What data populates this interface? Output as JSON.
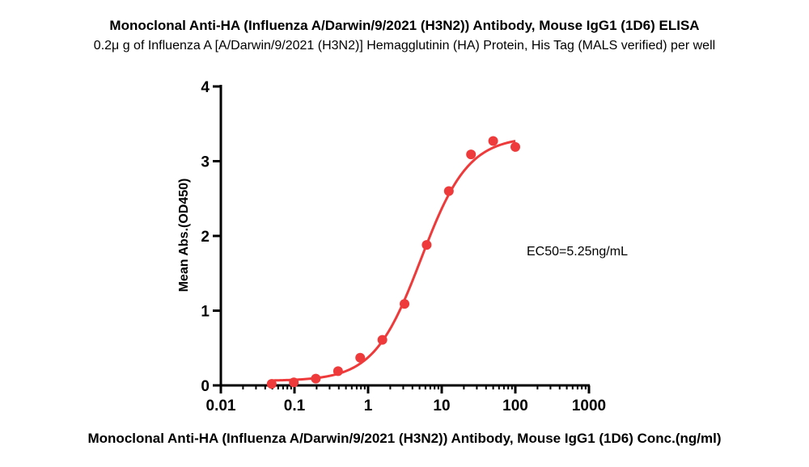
{
  "chart_data": {
    "type": "scatter",
    "title": "Monoclonal Anti-HA (Influenza A/Darwin/9/2021 (H3N2)) Antibody, Mouse IgG1 (1D6) ELISA",
    "subtitle": "0.2μ g of Influenza A [A/Darwin/9/2021 (H3N2)] Hemagglutinin (HA) Protein, His Tag (MALS verified) per well",
    "xlabel": "Monoclonal Anti-HA (Influenza A/Darwin/9/2021 (H3N2)) Antibody, Mouse IgG1 (1D6) Conc.(ng/ml)",
    "ylabel": "Mean Abs.(OD450)",
    "xscale": "log",
    "xlim": [
      0.01,
      1000
    ],
    "ylim": [
      0,
      4
    ],
    "xticks": [
      "0.01",
      "0.1",
      "1",
      "10",
      "100",
      "1000"
    ],
    "yticks": [
      "0",
      "1",
      "2",
      "3",
      "4"
    ],
    "series": [
      {
        "name": "Mean Abs.(OD450)",
        "color": "#ee3a3a",
        "x": [
          0.049,
          0.098,
          0.195,
          0.391,
          0.781,
          1.563,
          3.125,
          6.25,
          12.5,
          25,
          50,
          100
        ],
        "y": [
          0.02,
          0.04,
          0.09,
          0.19,
          0.37,
          0.61,
          1.09,
          1.88,
          2.6,
          3.09,
          3.27,
          3.19
        ]
      }
    ],
    "fit": {
      "type": "4PL",
      "bottom": 0.06,
      "top": 3.33,
      "ec50": 5.25,
      "hill": 1.35,
      "x_range": [
        0.049,
        100
      ]
    },
    "annotation": "EC50=5.25ng/mL"
  }
}
